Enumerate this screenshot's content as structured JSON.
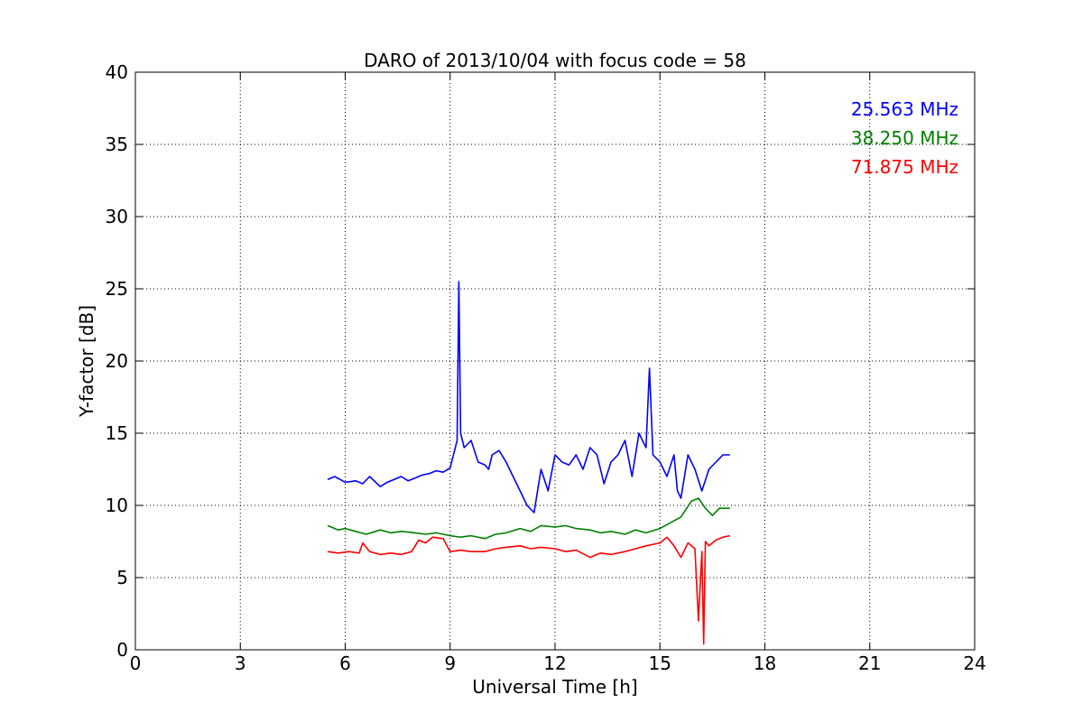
{
  "chart_data": {
    "type": "line",
    "title": "DARO of 2013/10/04 with focus code = 58",
    "xlabel": "Universal Time [h]",
    "ylabel": "Y-factor [dB]",
    "xlim": [
      0,
      24
    ],
    "ylim": [
      0,
      40
    ],
    "xticks": [
      0,
      3,
      6,
      9,
      12,
      15,
      18,
      21,
      24
    ],
    "yticks": [
      0,
      5,
      10,
      15,
      20,
      25,
      30,
      35,
      40
    ],
    "grid": true,
    "legend_position": "top-right",
    "series": [
      {
        "name": "25.563 MHz",
        "color": "#0000ff",
        "x": [
          5.5,
          5.7,
          6.0,
          6.3,
          6.5,
          6.7,
          7.0,
          7.2,
          7.4,
          7.6,
          7.8,
          8.0,
          8.2,
          8.4,
          8.6,
          8.8,
          9.0,
          9.2,
          9.25,
          9.3,
          9.4,
          9.6,
          9.8,
          10.0,
          10.1,
          10.2,
          10.4,
          10.6,
          10.8,
          11.0,
          11.2,
          11.4,
          11.5,
          11.6,
          11.8,
          12.0,
          12.2,
          12.4,
          12.6,
          12.8,
          13.0,
          13.2,
          13.4,
          13.6,
          13.8,
          14.0,
          14.2,
          14.4,
          14.6,
          14.7,
          14.8,
          15.0,
          15.2,
          15.4,
          15.5,
          15.6,
          15.8,
          16.0,
          16.2,
          16.4,
          16.6,
          16.8,
          17.0
        ],
        "y": [
          11.8,
          12.0,
          11.6,
          11.7,
          11.5,
          12.0,
          11.3,
          11.6,
          11.8,
          12.0,
          11.7,
          11.9,
          12.1,
          12.2,
          12.4,
          12.3,
          12.6,
          14.5,
          25.5,
          15.0,
          14.0,
          14.5,
          13.0,
          12.8,
          12.5,
          13.5,
          13.8,
          13.0,
          12.0,
          11.0,
          10.0,
          9.5,
          11.0,
          12.5,
          11.0,
          13.5,
          13.0,
          12.8,
          13.5,
          12.5,
          14.0,
          13.5,
          11.5,
          13.0,
          13.5,
          14.5,
          12.0,
          15.0,
          14.0,
          19.5,
          13.5,
          13.0,
          12.0,
          13.5,
          11.0,
          10.5,
          13.5,
          12.5,
          11.0,
          12.5,
          13.0,
          13.5,
          13.5
        ]
      },
      {
        "name": "38.250 MHz",
        "color": "#008000",
        "x": [
          5.5,
          5.8,
          6.0,
          6.3,
          6.6,
          7.0,
          7.3,
          7.6,
          8.0,
          8.3,
          8.6,
          9.0,
          9.3,
          9.6,
          10.0,
          10.3,
          10.6,
          11.0,
          11.3,
          11.6,
          12.0,
          12.3,
          12.6,
          13.0,
          13.3,
          13.6,
          14.0,
          14.3,
          14.6,
          15.0,
          15.3,
          15.6,
          15.9,
          16.1,
          16.3,
          16.5,
          16.7,
          17.0
        ],
        "y": [
          8.6,
          8.3,
          8.4,
          8.2,
          8.0,
          8.3,
          8.1,
          8.2,
          8.1,
          8.0,
          8.1,
          7.9,
          7.8,
          7.9,
          7.7,
          8.0,
          8.1,
          8.4,
          8.2,
          8.6,
          8.5,
          8.6,
          8.4,
          8.3,
          8.1,
          8.2,
          8.0,
          8.3,
          8.1,
          8.4,
          8.8,
          9.2,
          10.3,
          10.5,
          9.8,
          9.3,
          9.8,
          9.8
        ]
      },
      {
        "name": "71.875 MHz",
        "color": "#ff0000",
        "x": [
          5.5,
          5.8,
          6.1,
          6.4,
          6.5,
          6.7,
          7.0,
          7.3,
          7.6,
          7.9,
          8.1,
          8.3,
          8.5,
          8.8,
          9.0,
          9.3,
          9.6,
          10.0,
          10.3,
          10.6,
          11.0,
          11.3,
          11.6,
          12.0,
          12.3,
          12.6,
          13.0,
          13.3,
          13.6,
          14.0,
          14.3,
          14.6,
          15.0,
          15.2,
          15.4,
          15.6,
          15.8,
          16.0,
          16.1,
          16.2,
          16.25,
          16.3,
          16.4,
          16.6,
          16.8,
          17.0
        ],
        "y": [
          6.8,
          6.7,
          6.8,
          6.7,
          7.4,
          6.8,
          6.6,
          6.7,
          6.6,
          6.8,
          7.6,
          7.4,
          7.8,
          7.7,
          6.8,
          6.9,
          6.8,
          6.8,
          7.0,
          7.1,
          7.2,
          7.0,
          7.1,
          7.0,
          6.8,
          6.9,
          6.4,
          6.7,
          6.6,
          6.8,
          7.0,
          7.2,
          7.4,
          7.8,
          7.2,
          6.4,
          7.4,
          7.0,
          2.0,
          6.8,
          0.4,
          7.5,
          7.2,
          7.6,
          7.8,
          7.9
        ]
      }
    ]
  }
}
